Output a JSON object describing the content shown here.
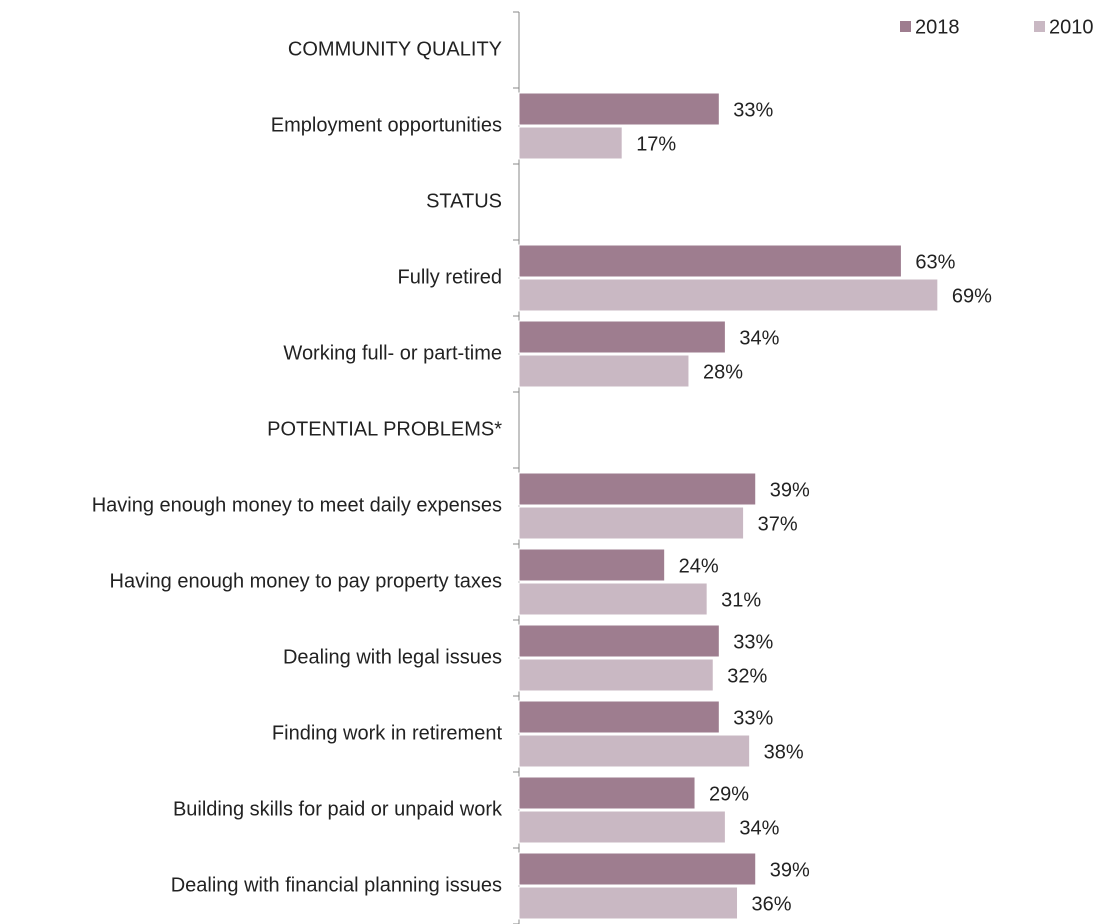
{
  "chart_data": {
    "type": "bar",
    "orientation": "horizontal",
    "categories": [
      "COMMUNITY QUALITY",
      "Employment opportunities",
      "STATUS",
      "Fully retired",
      "Working full- or part-time",
      "POTENTIAL PROBLEMS*",
      "Having enough money to meet daily expenses",
      "Having enough money to pay property taxes",
      "Dealing with legal issues",
      "Finding work in retirement",
      "Building skills for paid or unpaid work",
      "Dealing with financial planning issues"
    ],
    "series": [
      {
        "name": "2018",
        "color": "#9e7d8f",
        "values": [
          null,
          33,
          null,
          63,
          34,
          null,
          39,
          24,
          33,
          33,
          29,
          39
        ],
        "value_labels": [
          null,
          "33%",
          null,
          "63%",
          "34%",
          null,
          "39%",
          "24%",
          "33%",
          "33%",
          "29%",
          "39%"
        ]
      },
      {
        "name": "2010",
        "color": "#c9b8c3",
        "values": [
          null,
          17,
          null,
          69,
          28,
          null,
          37,
          31,
          32,
          38,
          34,
          36
        ],
        "value_labels": [
          null,
          "17%",
          null,
          "69%",
          "28%",
          null,
          "37%",
          "31%",
          "32%",
          "38%",
          "34%",
          "36%"
        ]
      }
    ],
    "xlim": [
      0,
      100
    ],
    "legend": "top-right"
  }
}
